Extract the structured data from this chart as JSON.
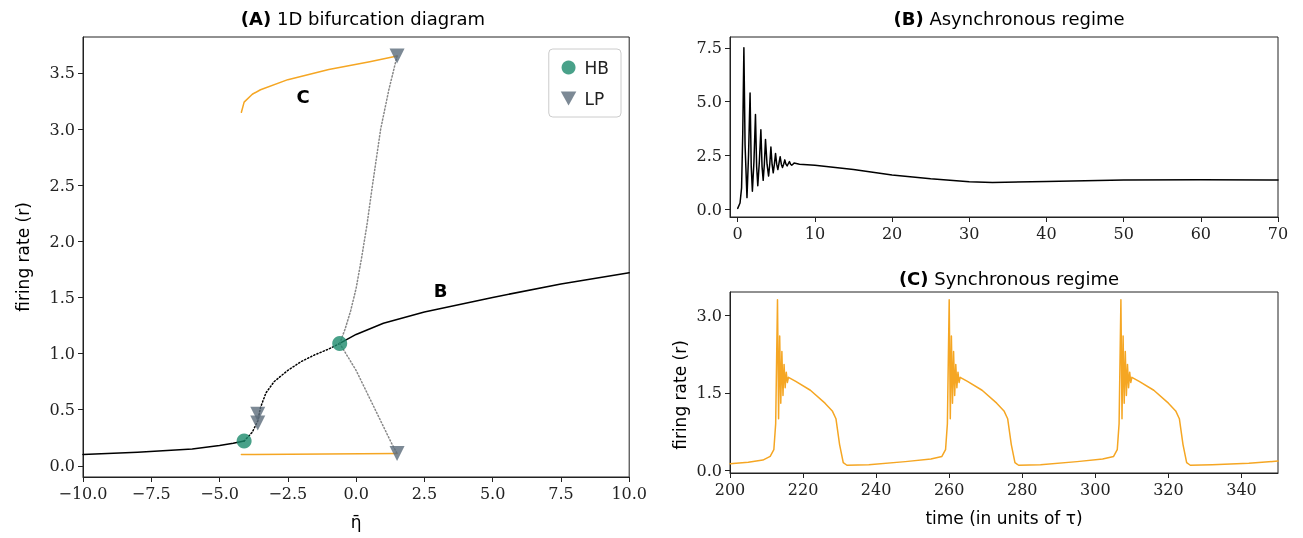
{
  "chart_data": [
    {
      "type": "line",
      "title": "(A) 1D bifurcation diagram",
      "xlabel": "η̄",
      "ylabel": "firing rate (r)",
      "marker": "none",
      "legend": "top right",
      "grid": false,
      "xlim": [
        -10,
        10
      ],
      "ylim": [
        -0.1,
        3.82
      ],
      "xticks": [
        {
          "value": -10,
          "label": "−10.0"
        },
        {
          "value": -7.5,
          "label": "−7.5"
        },
        {
          "value": -5,
          "label": "−5.0"
        },
        {
          "value": -2.5,
          "label": "−2.5"
        },
        {
          "value": 0,
          "label": "0.0"
        },
        {
          "value": 2.5,
          "label": "2.5"
        },
        {
          "value": 5,
          "label": "5.0"
        },
        {
          "value": 7.5,
          "label": "7.5"
        },
        {
          "value": 10,
          "label": "10.0"
        }
      ],
      "yticks": [
        {
          "value": 0,
          "label": "0.0"
        },
        {
          "value": 0.5,
          "label": "0.5"
        },
        {
          "value": 1,
          "label": "1.0"
        },
        {
          "value": 1.5,
          "label": "1.5"
        },
        {
          "value": 2,
          "label": "2.0"
        },
        {
          "value": 2.5,
          "label": "2.5"
        },
        {
          "value": 3,
          "label": "3.0"
        },
        {
          "value": 3.5,
          "label": "3.5"
        }
      ],
      "series": [
        {
          "color": "#000000",
          "line_style": "solid",
          "x": [
            -10,
            -8,
            -6,
            -5,
            -4.5,
            -4.1
          ],
          "values": [
            0.1,
            0.12,
            0.15,
            0.18,
            0.2,
            0.22
          ]
        },
        {
          "color": "#000000",
          "line_style": "dotted",
          "x": [
            -4.1,
            -3.8,
            -3.6,
            -3.5,
            -3.3,
            -3.0,
            -2.5,
            -2.0,
            -1.5,
            -1.0,
            -0.6
          ],
          "values": [
            0.22,
            0.3,
            0.4,
            0.52,
            0.65,
            0.75,
            0.85,
            0.93,
            0.99,
            1.04,
            1.09
          ]
        },
        {
          "color": "#000000",
          "line_style": "solid",
          "x": [
            -0.6,
            0,
            1,
            2.5,
            5,
            7.5,
            10
          ],
          "values": [
            1.09,
            1.17,
            1.27,
            1.37,
            1.5,
            1.62,
            1.72
          ]
        },
        {
          "color": "#f5a623",
          "line_style": "solid",
          "x": [
            -4.2,
            -4.1,
            -3.8,
            -3.5,
            -2.5,
            -1,
            0.5,
            1.5
          ],
          "values": [
            3.15,
            3.24,
            3.31,
            3.35,
            3.44,
            3.53,
            3.6,
            3.65
          ]
        },
        {
          "color": "#f5a623",
          "line_style": "solid",
          "x": [
            -4.2,
            1.5
          ],
          "values": [
            0.1,
            0.11
          ]
        },
        {
          "color": "#888888",
          "line_style": "dotted",
          "x": [
            -0.6,
            -0.4,
            -0.2,
            0,
            0.2,
            0.4,
            0.6,
            0.9,
            1.2,
            1.5
          ],
          "values": [
            1.09,
            1.22,
            1.38,
            1.58,
            1.85,
            2.15,
            2.5,
            3.0,
            3.35,
            3.65
          ]
        },
        {
          "color": "#888888",
          "line_style": "dotted",
          "x": [
            -0.6,
            0,
            0.5,
            1.0,
            1.3,
            1.5
          ],
          "values": [
            1.09,
            0.85,
            0.6,
            0.35,
            0.2,
            0.11
          ]
        },
        {
          "type": "scatter",
          "name": "HB",
          "color": "#1b8a6b",
          "marker": "circle",
          "x": [
            -4.1,
            -0.6
          ],
          "values": [
            0.22,
            1.09
          ]
        },
        {
          "type": "scatter",
          "name": "LP",
          "color": "#5b6b7b",
          "marker": "triangle",
          "x": [
            -3.6,
            -3.6,
            1.5,
            1.5
          ],
          "values": [
            0.46,
            0.38,
            3.65,
            0.11
          ]
        }
      ],
      "annotations": [
        "C",
        "B"
      ]
    },
    {
      "type": "line",
      "title": "(B) Asynchronous regime",
      "marker": "none",
      "grid": false,
      "xlim": [
        -1,
        70
      ],
      "ylim": [
        -0.35,
        8.0
      ],
      "xticks": [
        0,
        10,
        20,
        30,
        40,
        50,
        60,
        70
      ],
      "yticks": [
        {
          "value": 0,
          "label": "0.0"
        },
        {
          "value": 2.5,
          "label": "2.5"
        },
        {
          "value": 5,
          "label": "5.0"
        },
        {
          "value": 7.5,
          "label": "7.5"
        }
      ],
      "series": [
        {
          "color": "#000000",
          "x": [
            0,
            0.3,
            0.5,
            0.65,
            0.8,
            0.95,
            1.2,
            1.4,
            1.6,
            1.75,
            1.9,
            2.1,
            2.3,
            2.45,
            2.6,
            2.8,
            3.0,
            3.15,
            3.3,
            3.45,
            3.6,
            3.8,
            4.0,
            4.15,
            4.3,
            4.45,
            4.6,
            4.75,
            4.9,
            5.05,
            5.2,
            5.35,
            5.5,
            5.65,
            5.8,
            5.95,
            6.1,
            6.25,
            6.4,
            6.55,
            6.7,
            6.85,
            7.0,
            7.15,
            7.3,
            8,
            10,
            15,
            20,
            25,
            30,
            33,
            40,
            50,
            60,
            70
          ],
          "values": [
            0.05,
            0.3,
            1.0,
            3.5,
            7.5,
            3.0,
            0.55,
            2.5,
            5.4,
            2.0,
            0.85,
            2.2,
            4.4,
            2.0,
            1.1,
            2.2,
            3.7,
            2.0,
            1.35,
            2.1,
            3.25,
            2.1,
            1.55,
            2.1,
            2.9,
            2.1,
            1.7,
            2.1,
            2.6,
            2.1,
            1.85,
            2.15,
            2.45,
            2.1,
            1.95,
            2.1,
            2.3,
            2.1,
            2.02,
            2.12,
            2.22,
            2.1,
            2.05,
            2.1,
            2.15,
            2.1,
            2.05,
            1.85,
            1.6,
            1.42,
            1.28,
            1.25,
            1.3,
            1.37,
            1.38,
            1.37
          ]
        }
      ]
    },
    {
      "type": "line",
      "title": "(C) Synchronous regime",
      "xlabel": "time (in units of τ)",
      "ylabel": "firing rate (r)",
      "marker": "none",
      "grid": false,
      "xlim": [
        200,
        350
      ],
      "ylim": [
        -0.05,
        3.45
      ],
      "xticks": [
        200,
        220,
        240,
        260,
        280,
        300,
        320,
        340
      ],
      "yticks": [
        {
          "value": 0,
          "label": "0.0"
        },
        {
          "value": 1.5,
          "label": "1.5"
        },
        {
          "value": 3,
          "label": "3.0"
        }
      ],
      "series": [
        {
          "color": "#f5a623",
          "x": [
            200,
            205,
            209,
            211,
            212,
            212.5,
            213,
            213.3,
            213.6,
            213.9,
            214.2,
            214.5,
            214.8,
            215.1,
            215.4,
            215.7,
            216,
            218,
            222,
            226,
            228,
            229,
            230,
            231,
            232,
            238,
            248,
            255,
            258,
            259,
            259.5,
            260,
            260.3,
            260.6,
            260.9,
            261.2,
            261.5,
            261.8,
            262.1,
            262.4,
            262.7,
            263,
            265,
            269,
            273,
            275,
            276,
            277,
            278,
            279,
            285,
            295,
            302,
            305,
            306,
            306.5,
            307,
            307.3,
            307.6,
            307.9,
            308.2,
            308.5,
            308.8,
            309.1,
            309.4,
            309.7,
            310,
            312,
            316,
            320,
            322,
            323,
            324,
            325,
            326,
            332,
            342,
            350
          ],
          "values": [
            0.13,
            0.16,
            0.2,
            0.27,
            0.4,
            0.9,
            3.3,
            1.0,
            2.6,
            1.3,
            2.3,
            1.45,
            2.05,
            1.6,
            1.9,
            1.7,
            1.8,
            1.72,
            1.55,
            1.3,
            1.15,
            1.0,
            0.5,
            0.15,
            0.1,
            0.11,
            0.17,
            0.22,
            0.27,
            0.4,
            0.9,
            3.3,
            1.0,
            2.6,
            1.3,
            2.3,
            1.45,
            2.05,
            1.6,
            1.9,
            1.7,
            1.8,
            1.72,
            1.55,
            1.3,
            1.15,
            1.0,
            0.5,
            0.15,
            0.1,
            0.11,
            0.17,
            0.22,
            0.27,
            0.4,
            0.9,
            3.3,
            1.0,
            2.6,
            1.3,
            2.3,
            1.45,
            2.05,
            1.6,
            1.9,
            1.7,
            1.8,
            1.72,
            1.55,
            1.3,
            1.15,
            1.0,
            0.5,
            0.15,
            0.1,
            0.11,
            0.14,
            0.18
          ]
        }
      ]
    }
  ]
}
